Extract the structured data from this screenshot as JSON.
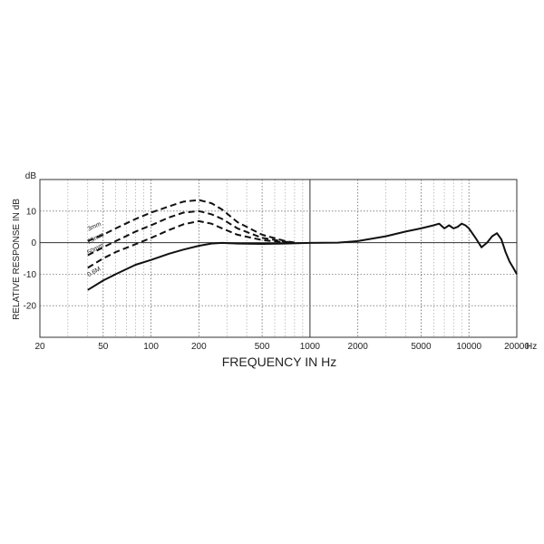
{
  "chart_data": {
    "type": "line",
    "xlabel": "FREQUENCY IN Hz",
    "ylabel": "RELATIVE RESPONSE IN dB",
    "y_unit_label": "dB",
    "x_scale": "log",
    "xlim": [
      20,
      20000
    ],
    "ylim": [
      -30,
      20
    ],
    "x_ticks": [
      20,
      50,
      100,
      200,
      500,
      1000,
      2000,
      5000,
      10000,
      20000
    ],
    "x_tick_labels": [
      "20",
      "50",
      "100",
      "200",
      "500",
      "1000",
      "2000",
      "5000",
      "10000",
      "20000"
    ],
    "x_unit_suffix": "Hz",
    "y_ticks": [
      10,
      0,
      -10,
      -20
    ],
    "y_tick_labels": [
      "10",
      "0",
      "-10",
      "-20"
    ],
    "grid": true,
    "series": [
      {
        "name": "0.6M",
        "style": "solid",
        "x": [
          40,
          50,
          60,
          80,
          100,
          130,
          160,
          200,
          240,
          280,
          350,
          500,
          700,
          1000,
          1500,
          2000,
          3000,
          4000,
          5000,
          6000,
          6500,
          7000,
          7500,
          8000,
          8500,
          9000,
          9500,
          10000,
          11000,
          12000,
          13000,
          14000,
          15000,
          16000,
          17000,
          18000,
          19000,
          20000
        ],
        "y": [
          -15,
          -12,
          -10,
          -7,
          -5.5,
          -3.5,
          -2.2,
          -1,
          -0.3,
          -0.1,
          -0.3,
          -0.4,
          -0.3,
          -0.1,
          0,
          0.5,
          2,
          3.5,
          4.5,
          5.5,
          6,
          4.5,
          5.5,
          4.5,
          5,
          6,
          5.5,
          4.5,
          1.5,
          -1.5,
          0,
          2,
          3,
          1,
          -3,
          -6,
          -8,
          -10
        ]
      },
      {
        "name": "50mm",
        "style": "dashed",
        "x": [
          40,
          50,
          60,
          80,
          100,
          130,
          160,
          200,
          240,
          280,
          350,
          500,
          700,
          800
        ],
        "y": [
          -8,
          -5,
          -3,
          -0.5,
          1.5,
          4,
          5.8,
          6.8,
          6,
          4.5,
          2.5,
          0.8,
          0.1,
          0
        ]
      },
      {
        "name": "25mm",
        "style": "dashed",
        "x": [
          40,
          50,
          60,
          80,
          100,
          130,
          160,
          200,
          240,
          280,
          350,
          500,
          700,
          800
        ],
        "y": [
          -4,
          -1.5,
          0.5,
          3.5,
          5.5,
          8,
          9.5,
          10,
          9,
          7.5,
          4.5,
          1.5,
          0.3,
          0
        ]
      },
      {
        "name": "3mm",
        "style": "dashed",
        "x": [
          40,
          50,
          60,
          80,
          100,
          130,
          160,
          200,
          240,
          280,
          350,
          500,
          700,
          800
        ],
        "y": [
          0.5,
          2.5,
          4.5,
          7.5,
          9.5,
          11.5,
          13,
          13.5,
          12.5,
          10.5,
          6.5,
          2.5,
          0.5,
          0
        ]
      }
    ]
  }
}
